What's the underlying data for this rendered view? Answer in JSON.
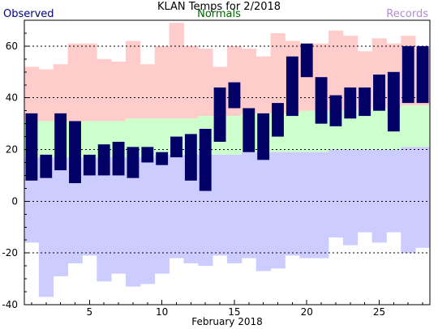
{
  "chart_data": {
    "type": "bar",
    "title": "KLAN Temps for 2/2018",
    "xlabel": "February 2018",
    "legend": [
      "Observed",
      "Normals",
      "Records"
    ],
    "colors": {
      "observed": "#000066",
      "normals": "#ccffcc",
      "record_high": "#ffcccc",
      "record_low": "#ccccff"
    },
    "ylim": [
      -40,
      70
    ],
    "y_ticks": [
      -40,
      -20,
      0,
      20,
      40,
      60
    ],
    "x_ticks": [
      5,
      10,
      15,
      20,
      25
    ],
    "days": [
      1,
      2,
      3,
      4,
      5,
      6,
      7,
      8,
      9,
      10,
      11,
      12,
      13,
      14,
      15,
      16,
      17,
      18,
      19,
      20,
      21,
      22,
      23,
      24,
      25,
      26,
      27,
      28
    ],
    "observed_high": [
      34,
      18,
      34,
      31,
      18,
      22,
      23,
      21,
      21,
      19,
      25,
      26,
      28,
      44,
      46,
      36,
      34,
      38,
      56,
      61,
      48,
      41,
      44,
      44,
      49,
      50,
      60,
      60
    ],
    "observed_low": [
      8,
      9,
      12,
      7,
      10,
      10,
      10,
      9,
      15,
      14,
      17,
      8,
      4,
      23,
      36,
      19,
      16,
      25,
      33,
      48,
      30,
      29,
      32,
      33,
      35,
      27,
      38,
      38
    ],
    "normal_high": [
      31,
      31,
      31,
      31,
      31,
      31,
      31,
      32,
      32,
      32,
      32,
      32,
      33,
      33,
      33,
      34,
      34,
      34,
      34,
      35,
      35,
      35,
      35,
      36,
      36,
      36,
      37,
      37
    ],
    "normal_low": [
      17,
      17,
      17,
      17,
      17,
      17,
      17,
      17,
      17,
      18,
      18,
      18,
      18,
      18,
      18,
      19,
      19,
      19,
      19,
      19,
      19,
      20,
      20,
      20,
      20,
      20,
      21,
      21
    ],
    "record_high": [
      52,
      51,
      53,
      61,
      61,
      55,
      54,
      62,
      53,
      60,
      69,
      60,
      59,
      52,
      60,
      59,
      56,
      65,
      62,
      61,
      61,
      66,
      64,
      58,
      63,
      61,
      64,
      59
    ],
    "record_low": [
      -16,
      -37,
      -29,
      -24,
      -21,
      -31,
      -28,
      -33,
      -32,
      -28,
      -22,
      -24,
      -25,
      -21,
      -24,
      -22,
      -27,
      -26,
      -21,
      -22,
      -22,
      -14,
      -17,
      -12,
      -16,
      -12,
      -20,
      -18
    ]
  }
}
